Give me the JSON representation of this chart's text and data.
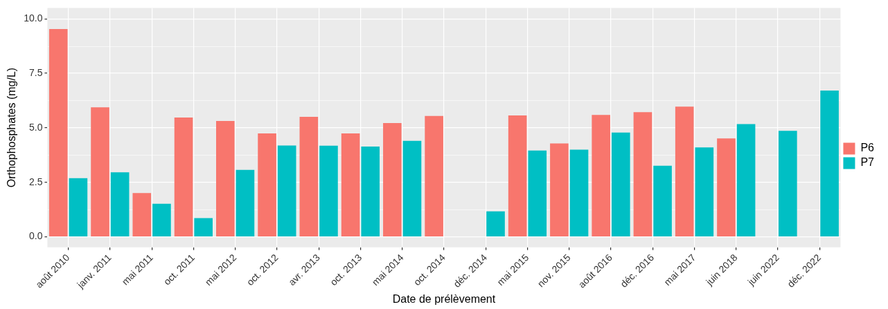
{
  "chart_data": {
    "type": "bar",
    "xlabel": "Date de prélèvement",
    "ylabel": "Orthophosphates (mg/L)",
    "categories": [
      "août 2010",
      "janv. 2011",
      "mai 2011",
      "oct. 2011",
      "mai 2012",
      "oct. 2012",
      "avr. 2013",
      "oct. 2013",
      "mai 2014",
      "oct. 2014",
      "déc. 2014",
      "mai 2015",
      "nov. 2015",
      "août 2016",
      "déc. 2016",
      "mai 2017",
      "juin 2018",
      "juin 2022",
      "déc. 2022"
    ],
    "series": [
      {
        "name": "P6",
        "color": "#f8766d",
        "values": [
          9.53,
          5.94,
          2.01,
          5.47,
          5.31,
          4.74,
          5.5,
          4.74,
          5.22,
          5.54,
          null,
          5.57,
          4.28,
          5.59,
          5.72,
          5.97,
          4.51,
          null,
          null
        ]
      },
      {
        "name": "P7",
        "color": "#00bfc4",
        "values": [
          2.69,
          2.96,
          1.52,
          0.86,
          3.07,
          4.19,
          4.18,
          4.14,
          4.4,
          null,
          1.17,
          3.96,
          4.0,
          4.78,
          3.26,
          4.1,
          5.17,
          4.86,
          6.71
        ]
      }
    ],
    "ylim": [
      -0.48,
      10.5
    ],
    "yticks": [
      {
        "value": 0,
        "label": "0.0"
      },
      {
        "value": 2.5,
        "label": "2.5"
      },
      {
        "value": 5,
        "label": "5.0"
      },
      {
        "value": 7.5,
        "label": "7.5"
      },
      {
        "value": 10,
        "label": "10.0"
      }
    ],
    "grid": true,
    "legend": "right"
  }
}
